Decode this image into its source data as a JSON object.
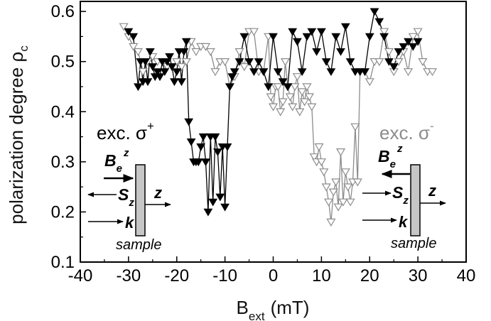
{
  "chart_data": {
    "type": "scatter",
    "xlabel": "B",
    "xlabel_sub": "ext",
    "xlabel_unit": "(mT)",
    "ylabel": "polarization degree ρ",
    "ylabel_sub": "c",
    "xlim": [
      -40,
      40
    ],
    "ylim": [
      0.1,
      0.62
    ],
    "x_ticks": [
      -40,
      -30,
      -20,
      -10,
      0,
      10,
      20,
      30,
      40
    ],
    "y_ticks": [
      0.1,
      0.2,
      0.3,
      0.4,
      0.5,
      0.6
    ],
    "x_tick_labels": [
      "-40",
      "-30",
      "-20",
      "-10",
      "0",
      "10",
      "20",
      "30",
      "40"
    ],
    "y_tick_labels": [
      "0.1",
      "0.2",
      "0.3",
      "0.4",
      "0.5",
      "0.6"
    ],
    "grid": false,
    "series": [
      {
        "name": "exc. σ+",
        "color": "#000000",
        "marker": "filled-down-triangle",
        "x": [
          -30,
          -29,
          -28,
          -27.5,
          -27,
          -26.5,
          -26,
          -25.5,
          -25,
          -24.5,
          -24,
          -23.5,
          -23,
          -22.5,
          -22,
          -21.5,
          -21,
          -20.5,
          -20,
          -19.5,
          -19,
          -18.5,
          -18,
          -17.5,
          -17,
          -16.5,
          -16,
          -15.5,
          -15,
          -14.5,
          -14,
          -13.5,
          -13,
          -12.5,
          -12,
          -11.5,
          -11,
          -10.5,
          -10,
          -9.5,
          -9,
          -8.5,
          -8,
          -7,
          -6,
          -5,
          -4,
          -3,
          -2,
          -1,
          0,
          1,
          2,
          3,
          4,
          5,
          6,
          7,
          8,
          9,
          10,
          11,
          12,
          13,
          14,
          15,
          16,
          17,
          18,
          19,
          20,
          21,
          22,
          23,
          24,
          25,
          26,
          27,
          28,
          29,
          30
        ],
        "y": [
          0.56,
          0.55,
          0.45,
          0.5,
          0.46,
          0.5,
          0.46,
          0.52,
          0.49,
          0.47,
          0.48,
          0.47,
          0.5,
          0.48,
          0.5,
          0.51,
          0.49,
          0.46,
          0.48,
          0.52,
          0.46,
          0.52,
          0.54,
          0.38,
          0.34,
          0.3,
          0.3,
          0.3,
          0.33,
          0.35,
          0.3,
          0.2,
          0.35,
          0.22,
          0.35,
          0.32,
          0.23,
          0.33,
          0.21,
          0.33,
          0.45,
          0.47,
          0.48,
          0.5,
          0.55,
          0.5,
          0.48,
          0.5,
          0.48,
          0.45,
          0.55,
          0.48,
          0.46,
          0.45,
          0.56,
          0.54,
          0.48,
          0.55,
          0.56,
          0.52,
          0.56,
          0.5,
          0.48,
          0.55,
          0.52,
          0.57,
          0.5,
          0.48,
          0.48,
          0.48,
          0.55,
          0.6,
          0.58,
          0.55,
          0.5,
          0.49,
          0.52,
          0.53,
          0.54,
          0.53,
          0.54
        ]
      },
      {
        "name": "exc. σ-",
        "color": "#8c8c8c",
        "marker": "open-down-triangle",
        "x": [
          -31,
          -30,
          -29,
          -28,
          -27,
          -26,
          -25,
          -24,
          -23,
          -22,
          -21,
          -20,
          -19,
          -18,
          -17,
          -16,
          -15,
          -14,
          -13,
          -12,
          -11,
          -10,
          -9,
          -8,
          -7,
          -6,
          -5,
          -4,
          -3,
          -2,
          -1,
          -0.5,
          0,
          0.5,
          1,
          1.5,
          2,
          2.5,
          3,
          3.5,
          4,
          4.5,
          5,
          5.5,
          6,
          6.5,
          7,
          7.5,
          8,
          8.5,
          9,
          9.5,
          10,
          10.5,
          11,
          11.5,
          12,
          12.5,
          13,
          13.5,
          14,
          14.5,
          15,
          15.5,
          16,
          16.5,
          17,
          17.5,
          18,
          19,
          20,
          21,
          22,
          23,
          24,
          25,
          26,
          27,
          28,
          29,
          30,
          31,
          32,
          33
        ],
        "y": [
          0.57,
          0.55,
          0.53,
          0.52,
          0.48,
          0.5,
          0.51,
          0.5,
          0.5,
          0.49,
          0.49,
          0.5,
          0.49,
          0.5,
          0.54,
          0.52,
          0.53,
          0.53,
          0.52,
          0.48,
          0.5,
          0.5,
          0.45,
          0.47,
          0.52,
          0.49,
          0.56,
          0.56,
          0.48,
          0.48,
          0.55,
          0.43,
          0.41,
          0.45,
          0.45,
          0.4,
          0.42,
          0.5,
          0.45,
          0.43,
          0.41,
          0.45,
          0.47,
          0.4,
          0.44,
          0.42,
          0.45,
          0.43,
          0.41,
          0.31,
          0.3,
          0.33,
          0.3,
          0.28,
          0.25,
          0.22,
          0.18,
          0.24,
          0.26,
          0.21,
          0.32,
          0.22,
          0.28,
          0.25,
          0.22,
          0.26,
          0.37,
          0.26,
          0.48,
          0.48,
          0.46,
          0.5,
          0.5,
          0.56,
          0.52,
          0.48,
          0.5,
          0.52,
          0.48,
          0.55,
          0.56,
          0.5,
          0.48,
          0.48
        ]
      }
    ],
    "annotations": {
      "left_label": "exc. σ",
      "left_label_sup": "+",
      "right_label": "exc. σ",
      "right_label_sup": "-",
      "be_label": "B",
      "be_sub": "e",
      "be_sup": "z",
      "s_label": "S",
      "s_sub": "z",
      "k_label": "k",
      "z_label": "z",
      "sample_label": "sample"
    }
  }
}
